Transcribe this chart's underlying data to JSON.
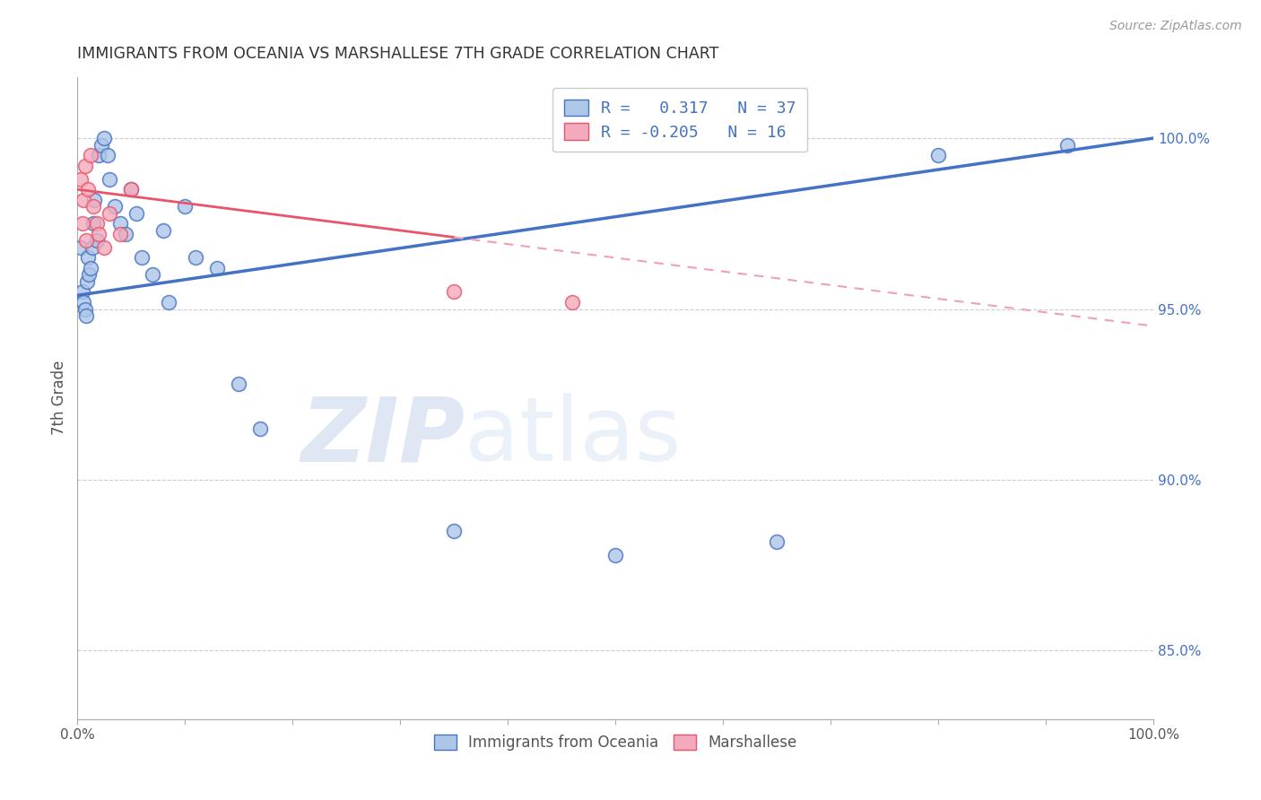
{
  "title": "IMMIGRANTS FROM OCEANIA VS MARSHALLESE 7TH GRADE CORRELATION CHART",
  "source": "Source: ZipAtlas.com",
  "ylabel": "7th Grade",
  "right_yticks": [
    85.0,
    90.0,
    95.0,
    100.0
  ],
  "blue_R": 0.317,
  "blue_N": 37,
  "pink_R": -0.205,
  "pink_N": 16,
  "blue_scatter_x": [
    0.3,
    0.5,
    0.6,
    0.7,
    0.8,
    0.9,
    1.0,
    1.1,
    1.2,
    1.4,
    1.5,
    1.6,
    1.8,
    2.0,
    2.2,
    2.5,
    2.8,
    3.0,
    3.5,
    4.0,
    4.5,
    5.0,
    5.5,
    6.0,
    7.0,
    8.0,
    8.5,
    10.0,
    11.0,
    13.0,
    15.0,
    17.0,
    35.0,
    50.0,
    65.0,
    80.0,
    92.0
  ],
  "blue_scatter_y": [
    96.8,
    95.5,
    95.2,
    95.0,
    94.8,
    95.8,
    96.5,
    96.0,
    96.2,
    96.8,
    97.5,
    98.2,
    97.0,
    99.5,
    99.8,
    100.0,
    99.5,
    98.8,
    98.0,
    97.5,
    97.2,
    98.5,
    97.8,
    96.5,
    96.0,
    97.3,
    95.2,
    98.0,
    96.5,
    96.2,
    92.8,
    91.5,
    88.5,
    87.8,
    88.2,
    99.5,
    99.8
  ],
  "pink_scatter_x": [
    0.3,
    0.5,
    0.6,
    0.7,
    0.8,
    1.0,
    1.2,
    1.5,
    1.8,
    2.0,
    2.5,
    3.0,
    4.0,
    5.0,
    35.0,
    46.0
  ],
  "pink_scatter_y": [
    98.8,
    97.5,
    98.2,
    99.2,
    97.0,
    98.5,
    99.5,
    98.0,
    97.5,
    97.2,
    96.8,
    97.8,
    97.2,
    98.5,
    95.5,
    95.2
  ],
  "blue_line_color": "#4472C4",
  "pink_line_color": "#E8546A",
  "pink_dash_color": "#F0A0B0",
  "blue_scatter_color": "#AEC6E8",
  "pink_scatter_color": "#F4AABC",
  "background_color": "#FFFFFF",
  "grid_color": "#CCCCCC",
  "title_color": "#333333",
  "right_axis_color": "#4472C4",
  "watermark_zip": "ZIP",
  "watermark_atlas": "atlas",
  "legend_label_blue": "Immigrants from Oceania",
  "legend_label_pink": "Marshallese",
  "xlim": [
    0,
    100
  ],
  "ylim": [
    83.0,
    101.8
  ],
  "pink_solid_end_x": 35.0,
  "blue_line_x0": 0,
  "blue_line_x1": 100,
  "blue_line_y0": 95.4,
  "blue_line_y1": 100.0,
  "pink_line_y0": 98.5,
  "pink_line_y1": 94.5
}
